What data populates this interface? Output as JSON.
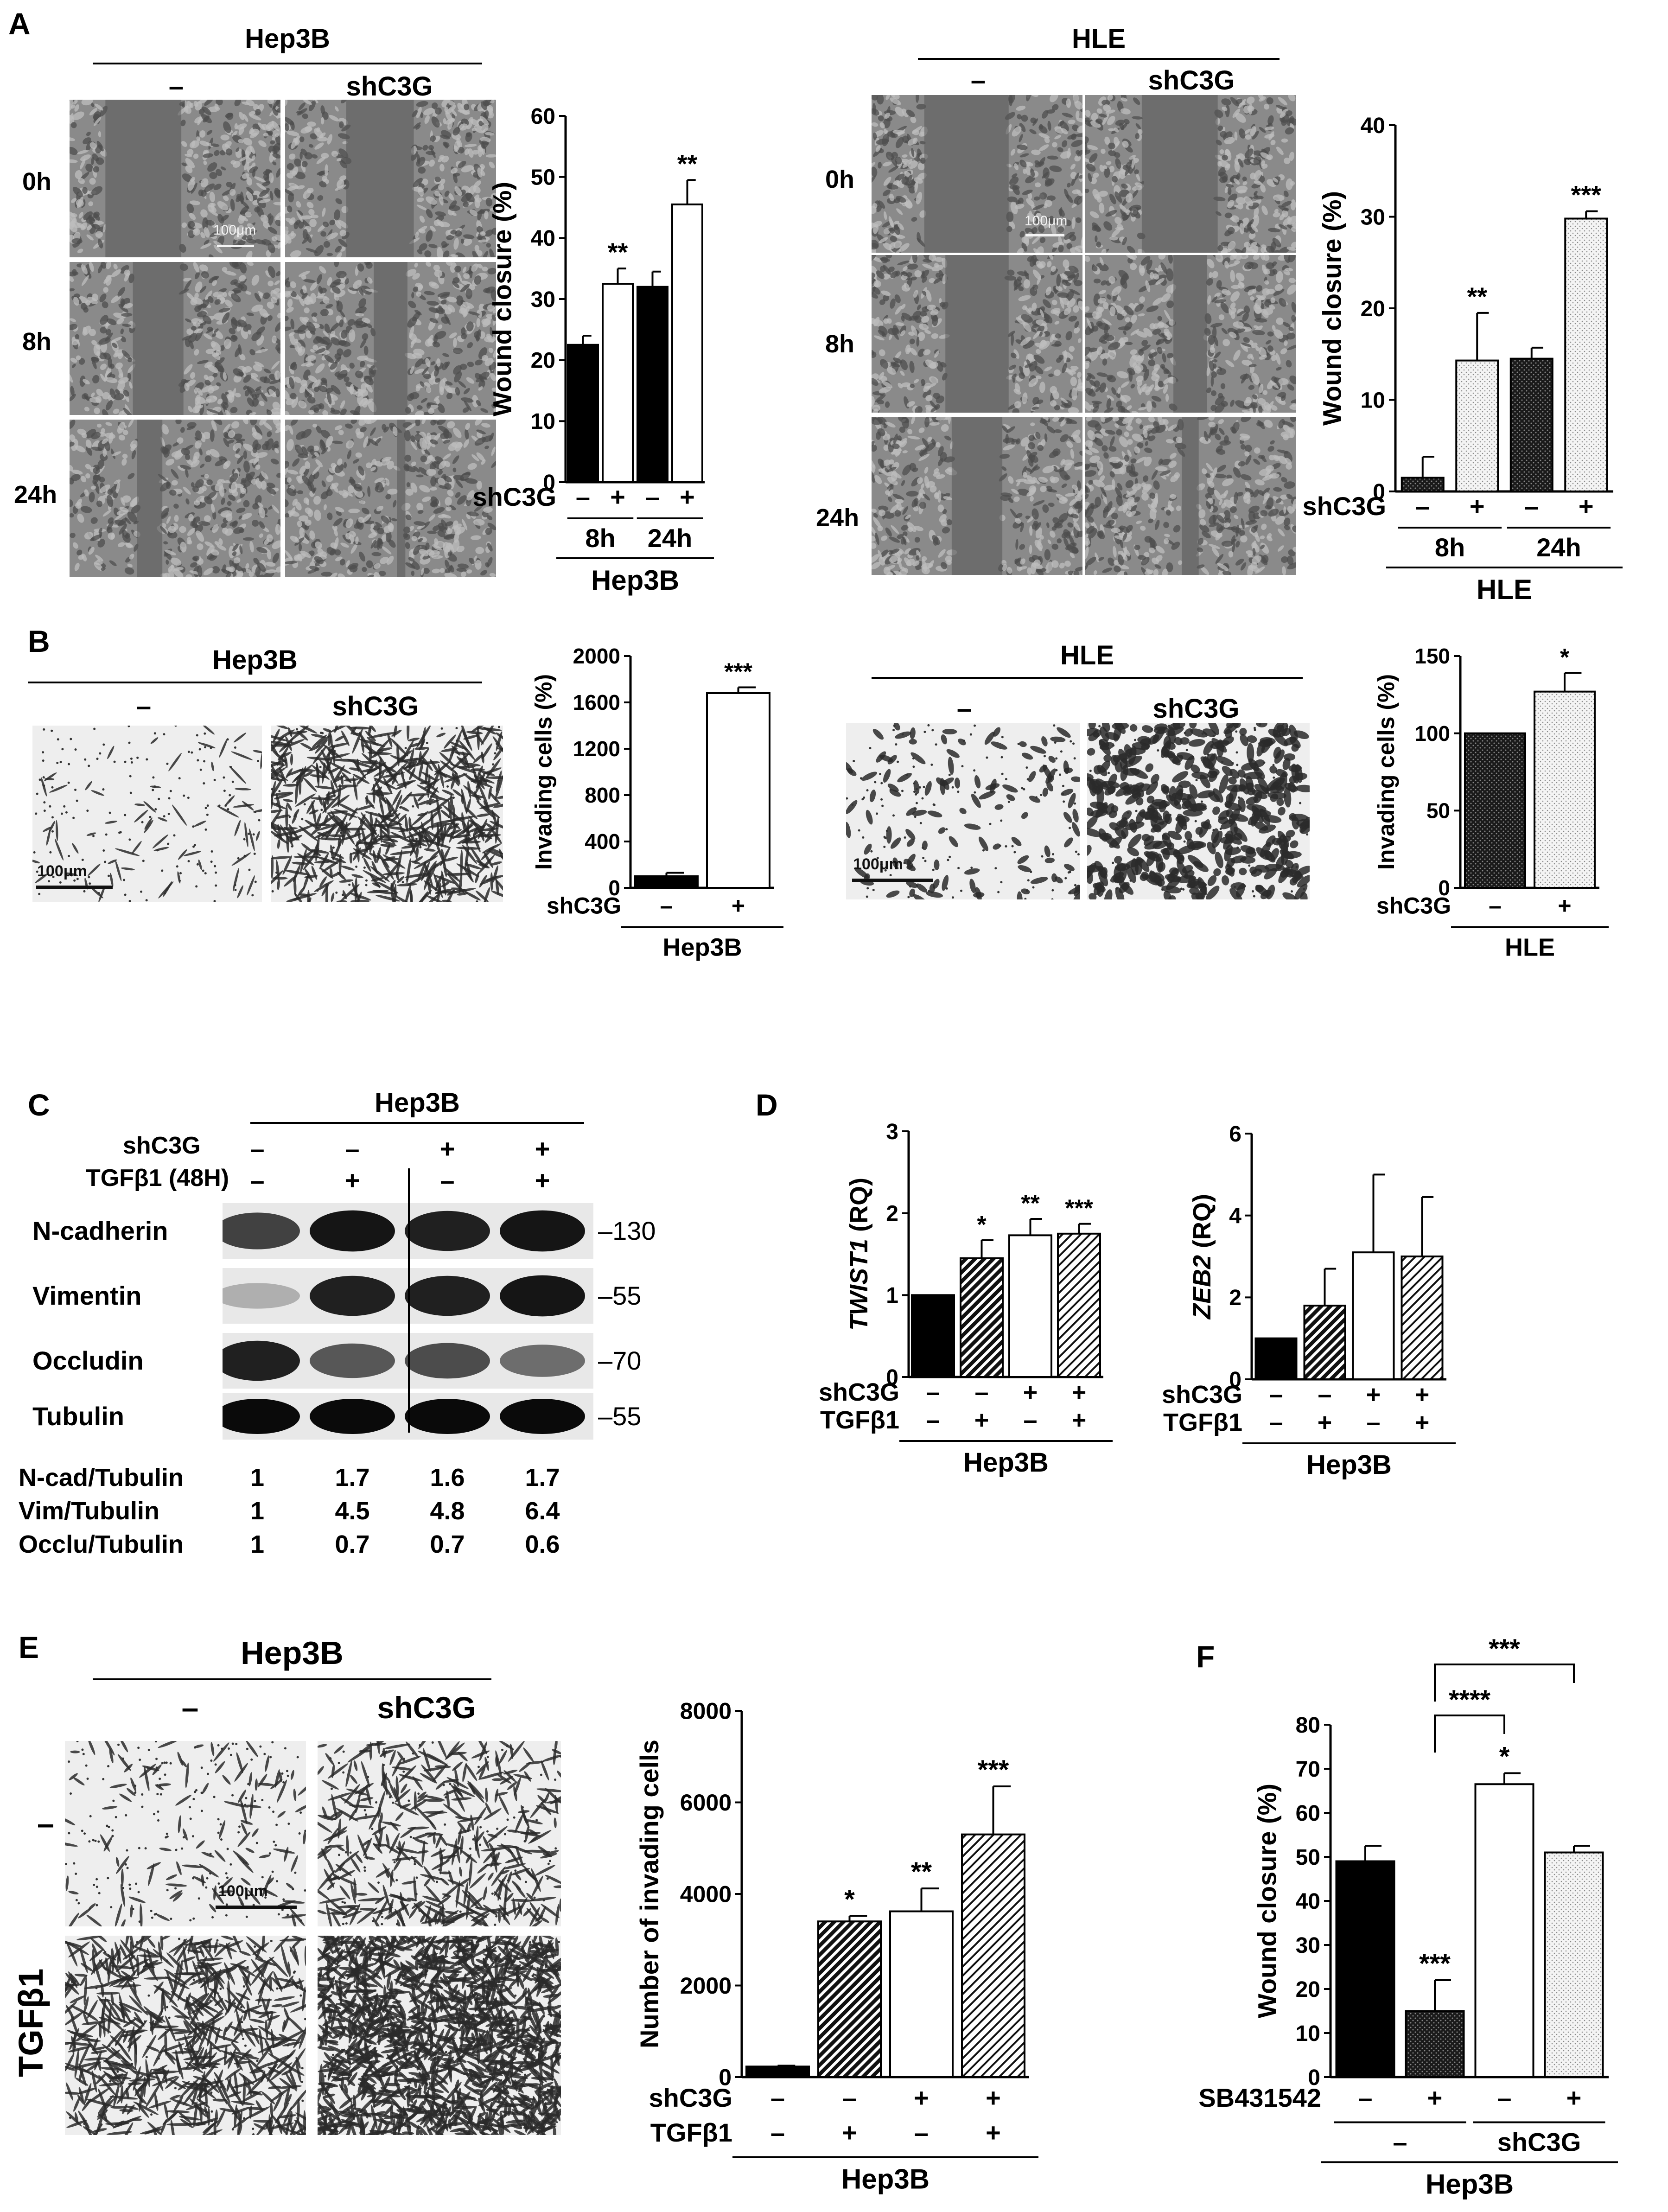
{
  "panels": {
    "A": {
      "letter": "A",
      "hep3b": {
        "cell_line": "Hep3B",
        "conditions": [
          "–",
          "shC3G"
        ],
        "times": [
          "0h",
          "8h",
          "24h"
        ],
        "scale_bar": "100μm"
      },
      "hle": {
        "cell_line": "HLE",
        "conditions": [
          "–",
          "shC3G"
        ],
        "times": [
          "0h",
          "8h",
          "24h"
        ],
        "scale_bar": "100μm"
      }
    },
    "B": {
      "letter": "B",
      "hep3b": {
        "cell_line": "Hep3B",
        "conditions": [
          "–",
          "shC3G"
        ],
        "scale_bar": "100μm"
      },
      "hle": {
        "cell_line": "HLE",
        "conditions": [
          "–",
          "shC3G"
        ],
        "scale_bar": "100μm"
      }
    },
    "C": {
      "letter": "C",
      "cell_line": "Hep3B",
      "row_labels": [
        "shC3G",
        "TGFβ1  (48H)"
      ],
      "shC3G": [
        "–",
        "–",
        "+",
        "+"
      ],
      "tgfb1": [
        "–",
        "+",
        "–",
        "+"
      ],
      "blots": [
        {
          "name": "N-cadherin",
          "marker": "130",
          "intensity": [
            0.75,
            0.95,
            0.9,
            0.95
          ]
        },
        {
          "name": "Vimentin",
          "marker": "55",
          "intensity": [
            0.25,
            0.9,
            0.9,
            0.95
          ]
        },
        {
          "name": "Occludin",
          "marker": "70",
          "intensity": [
            0.9,
            0.65,
            0.7,
            0.55
          ]
        },
        {
          "name": "Tubulin",
          "marker": "55",
          "intensity": [
            1.0,
            1.0,
            1.0,
            1.0
          ]
        }
      ],
      "quant": [
        {
          "label": "N-cad/Tubulin",
          "values": [
            "1",
            "1.7",
            "1.6",
            "1.7"
          ]
        },
        {
          "label": "Vim/Tubulin",
          "values": [
            "1",
            "4.5",
            "4.8",
            "6.4"
          ]
        },
        {
          "label": "Occlu/Tubulin",
          "values": [
            "1",
            "0.7",
            "0.7",
            "0.6"
          ]
        }
      ]
    },
    "D": {
      "letter": "D"
    },
    "E": {
      "letter": "E",
      "cell_line": "Hep3B",
      "conditions": [
        "–",
        "shC3G"
      ],
      "row_labels": [
        "–",
        "TGFβ1"
      ],
      "scale_bar": "100μm"
    },
    "F": {
      "letter": "F"
    }
  },
  "chart_data": [
    {
      "id": "A-hep3b",
      "type": "bar",
      "ylabel": "Wound closure (%)",
      "ylim": [
        0,
        60
      ],
      "yticks": [
        0,
        10,
        20,
        30,
        40,
        50,
        60
      ],
      "values": [
        22.5,
        32.5,
        32.0,
        45.5
      ],
      "errors": [
        1.5,
        2.5,
        2.5,
        4.0
      ],
      "fills": [
        "black",
        "white",
        "black",
        "white"
      ],
      "significance": [
        "",
        "**",
        "",
        "**"
      ],
      "factor_rows": [
        {
          "label": "shC3G",
          "values": [
            "–",
            "+",
            "–",
            "+"
          ]
        }
      ],
      "groups": [
        {
          "label": "8h",
          "span": [
            0,
            1
          ]
        },
        {
          "label": "24h",
          "span": [
            2,
            3
          ]
        }
      ],
      "footer": "Hep3B"
    },
    {
      "id": "A-hle",
      "type": "bar",
      "ylabel": "Wound closure (%)",
      "ylim": [
        0,
        40
      ],
      "yticks": [
        0,
        10,
        20,
        30,
        40
      ],
      "values": [
        1.5,
        14.3,
        14.5,
        29.8
      ],
      "errors": [
        2.3,
        5.2,
        1.2,
        0.8
      ],
      "fills": [
        "dots-dark",
        "dots-light",
        "dots-dark",
        "dots-light"
      ],
      "significance": [
        "",
        "**",
        "",
        "***"
      ],
      "factor_rows": [
        {
          "label": "shC3G",
          "values": [
            "–",
            "+",
            "–",
            "+"
          ]
        }
      ],
      "groups": [
        {
          "label": "8h",
          "span": [
            0,
            1
          ]
        },
        {
          "label": "24h",
          "span": [
            2,
            3
          ]
        }
      ],
      "footer": "HLE"
    },
    {
      "id": "B-hep3b",
      "type": "bar",
      "ylabel": "Invading cells (%)",
      "ylim": [
        0,
        2000
      ],
      "yticks": [
        0,
        400,
        800,
        1200,
        1600,
        2000
      ],
      "values": [
        100,
        1680
      ],
      "errors": [
        30,
        50
      ],
      "fills": [
        "black",
        "white"
      ],
      "significance": [
        "",
        "***"
      ],
      "factor_rows": [
        {
          "label": "shC3G",
          "values": [
            "–",
            "+"
          ]
        }
      ],
      "groups": [],
      "footer": "Hep3B"
    },
    {
      "id": "B-hle",
      "type": "bar",
      "ylabel": "Invading cells (%)",
      "ylim": [
        0,
        150
      ],
      "yticks": [
        0,
        50,
        100,
        150
      ],
      "values": [
        100,
        127
      ],
      "errors": [
        0,
        12
      ],
      "fills": [
        "dots-dark",
        "dots-light"
      ],
      "significance": [
        "",
        "*"
      ],
      "factor_rows": [
        {
          "label": "shC3G",
          "values": [
            "–",
            "+"
          ]
        }
      ],
      "groups": [],
      "footer": "HLE"
    },
    {
      "id": "D-twist1",
      "type": "bar",
      "ylabel_italic": "TWIST1",
      "ylabel": "(RQ)",
      "ylim": [
        0,
        3
      ],
      "yticks": [
        0,
        1,
        2,
        3
      ],
      "values": [
        1.0,
        1.45,
        1.73,
        1.75
      ],
      "errors": [
        0,
        0.22,
        0.2,
        0.12
      ],
      "fills": [
        "black",
        "hatch",
        "white",
        "hatch-light"
      ],
      "significance": [
        "",
        "*",
        "**",
        "***"
      ],
      "factor_rows": [
        {
          "label": "shC3G",
          "values": [
            "–",
            "–",
            "+",
            "+"
          ]
        },
        {
          "label": "TGFβ1",
          "values": [
            "–",
            "+",
            "–",
            "+"
          ]
        }
      ],
      "groups": [],
      "footer": "Hep3B"
    },
    {
      "id": "D-zeb2",
      "type": "bar",
      "ylabel_italic": "ZEB2",
      "ylabel": "(RQ)",
      "ylim": [
        0,
        6
      ],
      "yticks": [
        0,
        2,
        4,
        6
      ],
      "values": [
        1.0,
        1.8,
        3.1,
        3.0
      ],
      "errors": [
        0,
        0.9,
        1.9,
        1.45
      ],
      "fills": [
        "black",
        "hatch",
        "white",
        "hatch-light"
      ],
      "significance": [
        "",
        "",
        "",
        ""
      ],
      "factor_rows": [
        {
          "label": "shC3G",
          "values": [
            "–",
            "–",
            "+",
            "+"
          ]
        },
        {
          "label": "TGFβ1",
          "values": [
            "–",
            "+",
            "–",
            "+"
          ]
        }
      ],
      "groups": [],
      "footer": "Hep3B"
    },
    {
      "id": "E-invasion",
      "type": "bar",
      "ylabel": "Number of invading cells",
      "ylim": [
        0,
        8000
      ],
      "yticks": [
        0,
        2000,
        4000,
        6000,
        8000
      ],
      "values": [
        230,
        3400,
        3620,
        5300
      ],
      "errors": [
        20,
        120,
        500,
        1050
      ],
      "fills": [
        "black",
        "hatch",
        "white",
        "hatch-light"
      ],
      "significance": [
        "",
        "*",
        "**",
        "***"
      ],
      "factor_rows": [
        {
          "label": "shC3G",
          "values": [
            "–",
            "–",
            "+",
            "+"
          ]
        },
        {
          "label": "TGFβ1",
          "values": [
            "–",
            "+",
            "–",
            "+"
          ]
        }
      ],
      "groups": [],
      "footer": "Hep3B"
    },
    {
      "id": "F-wound",
      "type": "bar",
      "ylabel": "Wound closure (%)",
      "ylim": [
        0,
        80
      ],
      "yticks": [
        0,
        10,
        20,
        30,
        40,
        50,
        60,
        70,
        80
      ],
      "values": [
        49.0,
        15.0,
        66.5,
        51.0
      ],
      "errors": [
        3.5,
        7.0,
        2.5,
        1.5
      ],
      "fills": [
        "black",
        "dots-dark",
        "white",
        "dots-light"
      ],
      "significance": [
        "",
        "***",
        "*",
        ""
      ],
      "brackets": [
        {
          "from": 1,
          "to": 2,
          "label": "****"
        },
        {
          "from": 1,
          "to": 3,
          "label": "***"
        }
      ],
      "factor_rows": [
        {
          "label": "SB431542",
          "values": [
            "–",
            "+",
            "–",
            "+"
          ]
        }
      ],
      "groups": [
        {
          "label": "–",
          "span": [
            0,
            1
          ]
        },
        {
          "label": "shC3G",
          "span": [
            2,
            3
          ]
        }
      ],
      "footer": "Hep3B"
    }
  ]
}
